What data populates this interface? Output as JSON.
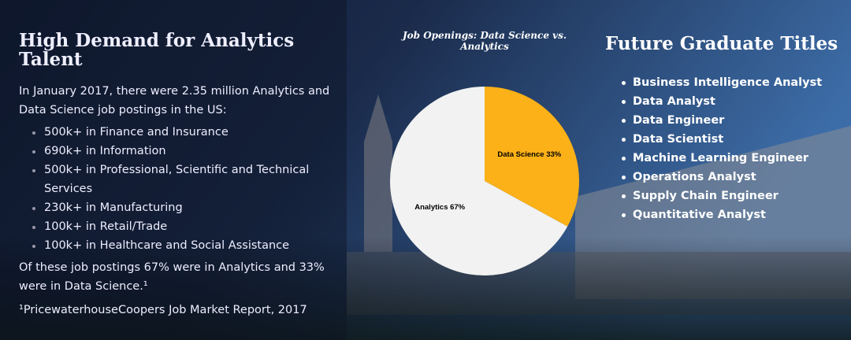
{
  "left": {
    "heading": "High Demand for Analytics Talent",
    "intro": "In January 2017, there were 2.35 million Analytics and Data Science job postings in the US:",
    "items": [
      "500k+ in Finance and Insurance",
      "690k+ in Information",
      "500k+ in Professional, Scientific and Technical Services",
      "230k+ in Manufacturing",
      "100k+ in Retail/Trade",
      "100k+ in Healthcare and Social Assistance"
    ],
    "summary": "Of these job postings 67% were in Analytics and 33% were in Data Science.¹",
    "footnote": "¹PricewaterhouseCoopers Job Market Report, 2017"
  },
  "chart_data": {
    "type": "pie",
    "title": "Job Openings: Data Science vs. Analytics",
    "categories": [
      "Data Science",
      "Analytics"
    ],
    "values": [
      33,
      67
    ],
    "value_labels": [
      "Data Science 33%",
      "Analytics 67%"
    ],
    "colors": [
      "#fbb117",
      "#f2f2f2"
    ]
  },
  "right": {
    "heading": "Future Graduate Titles",
    "items": [
      "Business Intelligence Analyst",
      "Data Analyst",
      "Data Engineer",
      "Data Scientist",
      "Machine Learning Engineer",
      "Operations Analyst",
      "Supply Chain Engineer",
      "Quantitative Analyst"
    ]
  }
}
